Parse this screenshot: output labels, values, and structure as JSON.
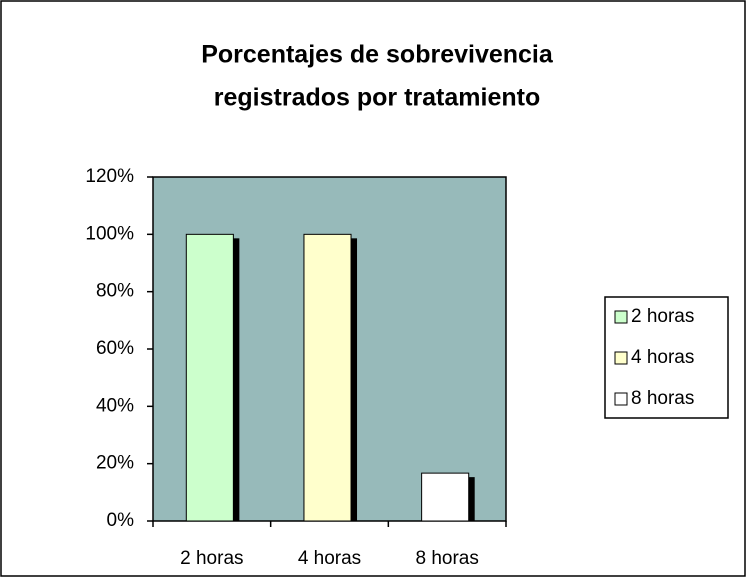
{
  "chart_data": {
    "type": "bar",
    "title": [
      "Porcentajes de sobrevivencia",
      "registrados por tratamiento"
    ],
    "categories": [
      "2 horas",
      "4 horas",
      "8 horas"
    ],
    "values": [
      100,
      100,
      16.7
    ],
    "colors": [
      "#ccffcc",
      "#ffffcc",
      "#ffffff"
    ],
    "ylim": [
      0,
      120
    ],
    "yticks": [
      {
        "value": 0,
        "label": "0%"
      },
      {
        "value": 20,
        "label": "20%"
      },
      {
        "value": 40,
        "label": "40%"
      },
      {
        "value": 60,
        "label": "60%"
      },
      {
        "value": 80,
        "label": "80%"
      },
      {
        "value": 100,
        "label": "100%"
      },
      {
        "value": 120,
        "label": "120%"
      }
    ],
    "grid": false,
    "legend": "right"
  }
}
